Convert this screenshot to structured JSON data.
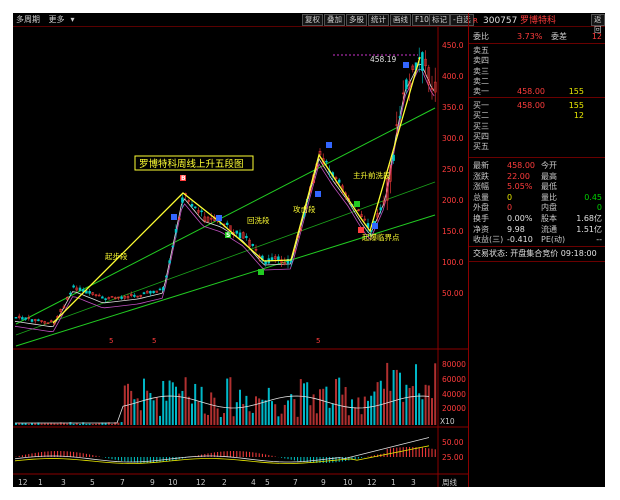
{
  "toolbar": {
    "left": [
      "多周期",
      "更多"
    ],
    "buttons": [
      "复权",
      "叠加",
      "多股",
      "统计",
      "画线",
      "F10",
      "标记",
      "-自选",
      "返回"
    ]
  },
  "annotations": {
    "title": "罗博特科周线上升五段图",
    "peak_price": "458.19",
    "wave1": "起步段",
    "wave2": "回洗段",
    "wave3": "攻击段",
    "wave4": "主升前洗段",
    "wave5": "起爆临界点",
    "signal_b": "B",
    "signal_s": "S",
    "marker_5": "5"
  },
  "axes": {
    "price_ticks": [
      "450.0",
      "400.0",
      "350.0",
      "300.0",
      "250.0",
      "200.0",
      "150.0",
      "100.0",
      "50.00"
    ],
    "volume_ticks": [
      "80000",
      "60000",
      "40000",
      "20000",
      "X10"
    ],
    "macd_ticks": [
      "50.00",
      "25.00"
    ],
    "x_ticks": [
      "12",
      "1",
      "3",
      "5",
      "7",
      "9",
      "10",
      "12",
      "2",
      "4",
      "5",
      "7",
      "9",
      "10",
      "12",
      "1",
      "3"
    ],
    "period_label": "周线"
  },
  "quote": {
    "code": "300757",
    "name": "罗博特科",
    "rank_badge": "R",
    "weibi": {
      "label": "委比",
      "value": "3.73%",
      "label2": "委差",
      "value2": "12"
    },
    "sell": [
      {
        "label": "卖五",
        "price": "",
        "vol": ""
      },
      {
        "label": "卖四",
        "price": "",
        "vol": ""
      },
      {
        "label": "卖三",
        "price": "",
        "vol": ""
      },
      {
        "label": "卖二",
        "price": "",
        "vol": ""
      },
      {
        "label": "卖一",
        "price": "458.00",
        "vol": "155"
      }
    ],
    "buy": [
      {
        "label": "买一",
        "price": "458.00",
        "vol": "155"
      },
      {
        "label": "买二",
        "price": "",
        "vol": "12"
      },
      {
        "label": "买三",
        "price": "",
        "vol": ""
      },
      {
        "label": "买四",
        "price": "",
        "vol": ""
      },
      {
        "label": "买五",
        "price": "",
        "vol": ""
      }
    ],
    "stats": [
      {
        "l1": "最新",
        "v1": "458.00",
        "c1": "red",
        "l2": "今开",
        "v2": "",
        "c2": "wht"
      },
      {
        "l1": "涨跌",
        "v1": "22.00",
        "c1": "red",
        "l2": "最高",
        "v2": "",
        "c2": "wht"
      },
      {
        "l1": "涨幅",
        "v1": "5.05%",
        "c1": "red",
        "l2": "最低",
        "v2": "",
        "c2": "wht"
      },
      {
        "l1": "总量",
        "v1": "0",
        "c1": "yel",
        "l2": "量比",
        "v2": "0.45",
        "c2": "green"
      },
      {
        "l1": "外盘",
        "v1": "0",
        "c1": "red",
        "l2": "内盘",
        "v2": "0",
        "c2": "green"
      },
      {
        "l1": "换手",
        "v1": "0.00%",
        "c1": "wht",
        "l2": "股本",
        "v2": "1.68亿",
        "c2": "wht"
      },
      {
        "l1": "净资",
        "v1": "9.98",
        "c1": "wht",
        "l2": "流通",
        "v2": "1.51亿",
        "c2": "wht"
      },
      {
        "l1": "收益(三)",
        "v1": "-0.410",
        "c1": "wht",
        "l2": "PE(动)",
        "v2": "--",
        "c2": "wht"
      }
    ],
    "trade_status": "交易状态: 开盘集合竞价 09:18:00"
  },
  "colors": {
    "up": "#ff3c3c",
    "down": "#00c8c8",
    "wave": "#ffff33",
    "channel": "#22cc22",
    "background": "#000000"
  }
}
